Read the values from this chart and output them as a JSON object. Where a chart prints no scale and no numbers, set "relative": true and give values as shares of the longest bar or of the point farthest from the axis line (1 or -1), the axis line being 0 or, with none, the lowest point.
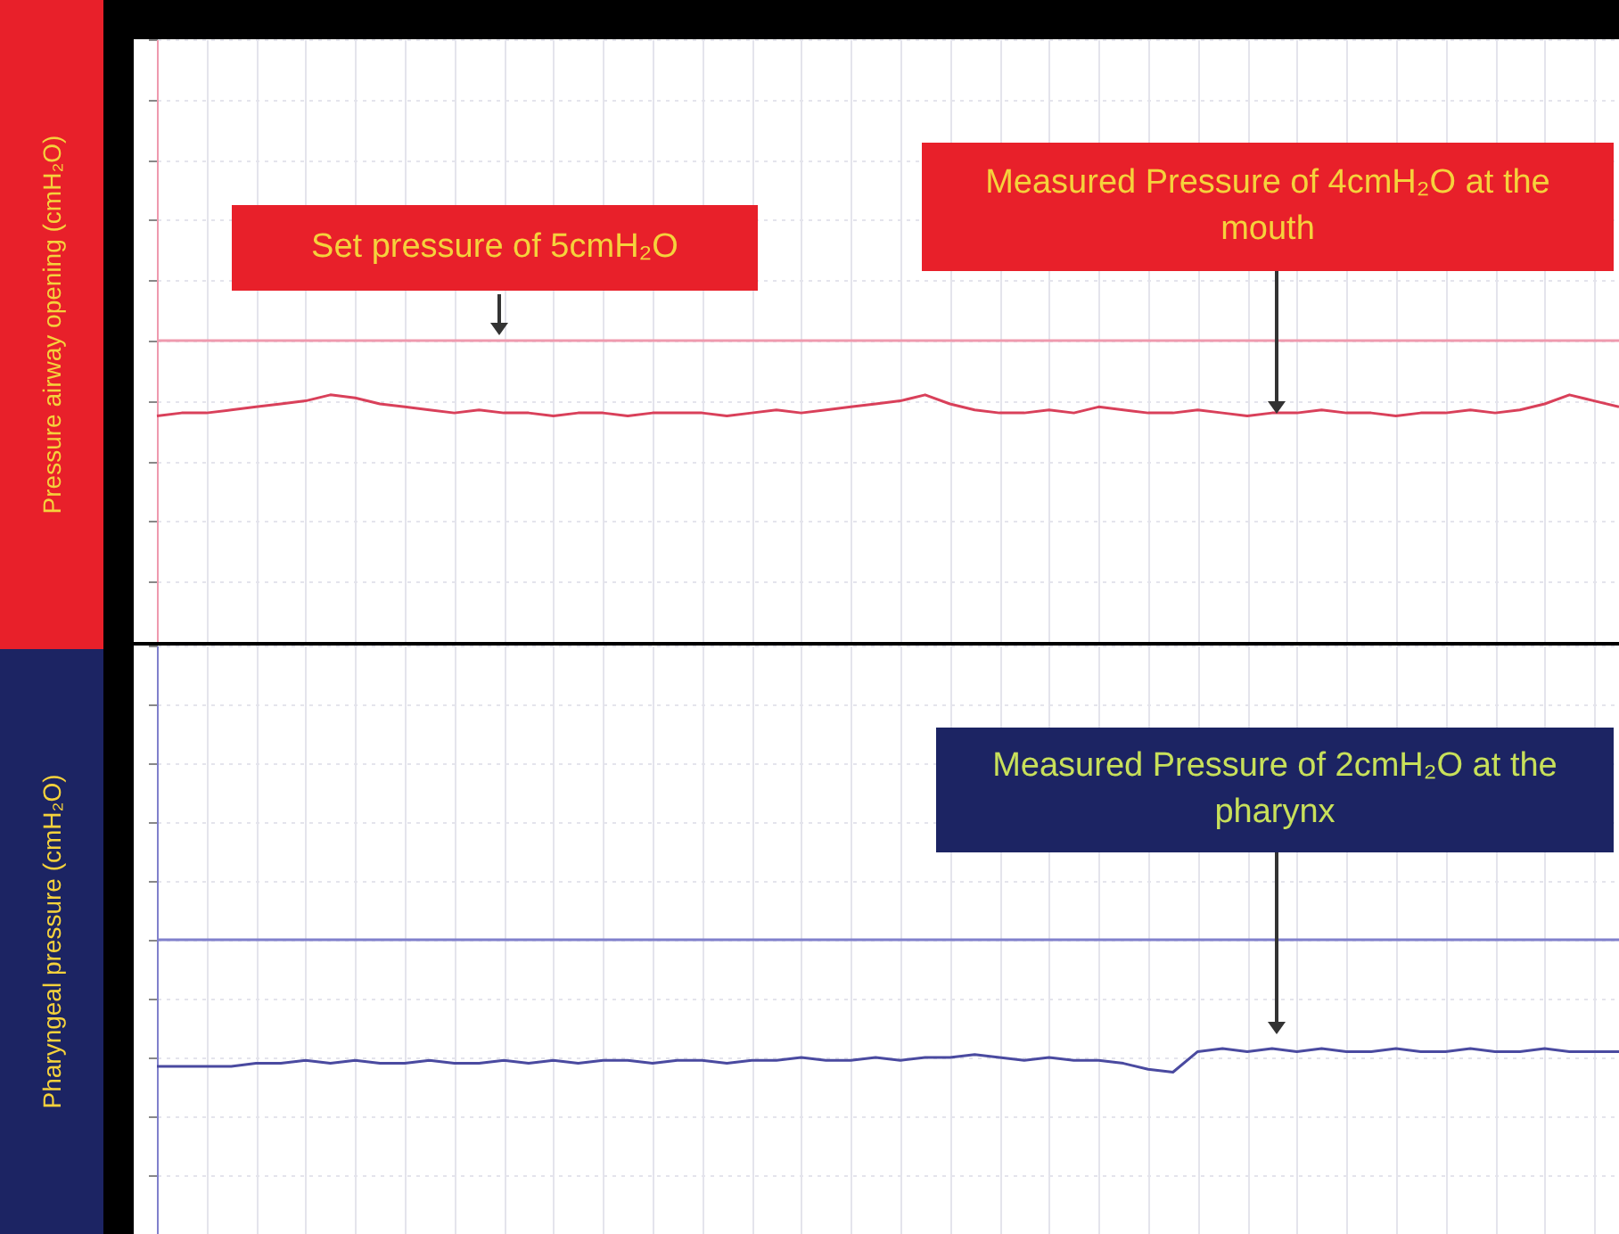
{
  "chart_data": [
    {
      "type": "line",
      "categories": [
        null,
        null,
        null,
        null,
        null,
        null,
        null,
        null,
        null,
        null,
        null,
        null,
        null,
        null,
        null,
        null,
        null,
        null,
        null,
        null,
        null,
        null,
        null,
        null,
        null,
        null,
        null,
        null,
        null,
        null,
        null,
        null,
        null,
        null,
        null,
        null,
        null,
        null,
        null,
        null,
        null,
        null,
        null,
        null,
        null,
        null,
        null,
        null,
        null,
        null,
        null,
        null,
        null,
        null,
        null,
        null,
        null,
        null,
        null,
        null
      ],
      "relative": true,
      "grid": true,
      "ylabel": "Pressure airway opening (cmH₂O)",
      "annotations": [
        "Set pressure of 5cmH₂O",
        "Measured Pressure of 4cmH₂O at the mouth"
      ],
      "series": [
        {
          "color": "#ef9aae",
          "values": [
            1,
            1,
            1,
            1,
            1,
            1,
            1,
            1,
            1,
            1,
            1,
            1,
            1,
            1,
            1,
            1,
            1,
            1,
            1,
            1,
            1,
            1,
            1,
            1,
            1,
            1,
            1,
            1,
            1,
            1,
            1,
            1,
            1,
            1,
            1,
            1,
            1,
            1,
            1,
            1,
            1,
            1,
            1,
            1,
            1,
            1,
            1,
            1,
            1,
            1,
            1,
            1,
            1,
            1,
            1,
            1,
            1,
            1,
            1,
            1
          ]
        },
        {
          "color": "#d9405a",
          "values": [
            0.75,
            0.76,
            0.76,
            0.77,
            0.78,
            0.79,
            0.8,
            0.82,
            0.81,
            0.79,
            0.78,
            0.77,
            0.76,
            0.77,
            0.76,
            0.76,
            0.75,
            0.76,
            0.76,
            0.75,
            0.76,
            0.76,
            0.76,
            0.75,
            0.76,
            0.77,
            0.76,
            0.77,
            0.78,
            0.79,
            0.8,
            0.82,
            0.79,
            0.77,
            0.76,
            0.76,
            0.77,
            0.76,
            0.78,
            0.77,
            0.76,
            0.76,
            0.77,
            0.76,
            0.75,
            0.76,
            0.76,
            0.77,
            0.76,
            0.76,
            0.75,
            0.76,
            0.76,
            0.77,
            0.76,
            0.77,
            0.79,
            0.82,
            0.8,
            0.78
          ]
        }
      ]
    },
    {
      "type": "line",
      "categories": [
        null,
        null,
        null,
        null,
        null,
        null,
        null,
        null,
        null,
        null,
        null,
        null,
        null,
        null,
        null,
        null,
        null,
        null,
        null,
        null,
        null,
        null,
        null,
        null,
        null,
        null,
        null,
        null,
        null,
        null,
        null,
        null,
        null,
        null,
        null,
        null,
        null,
        null,
        null,
        null,
        null,
        null,
        null,
        null,
        null,
        null,
        null,
        null,
        null,
        null,
        null,
        null,
        null,
        null,
        null,
        null,
        null,
        null,
        null,
        null
      ],
      "relative": true,
      "grid": true,
      "ylabel": "Pharyngeal pressure (cmH₂O)",
      "annotations": [
        "Measured Pressure of 2cmH₂O at the pharynx"
      ],
      "series": [
        {
          "color": "#8080cc",
          "values": [
            1,
            1,
            1,
            1,
            1,
            1,
            1,
            1,
            1,
            1,
            1,
            1,
            1,
            1,
            1,
            1,
            1,
            1,
            1,
            1,
            1,
            1,
            1,
            1,
            1,
            1,
            1,
            1,
            1,
            1,
            1,
            1,
            1,
            1,
            1,
            1,
            1,
            1,
            1,
            1,
            1,
            1,
            1,
            1,
            1,
            1,
            1,
            1,
            1,
            1,
            1,
            1,
            1,
            1,
            1,
            1,
            1,
            1,
            1,
            1
          ]
        },
        {
          "color": "#4a4aa0",
          "values": [
            0.57,
            0.57,
            0.57,
            0.57,
            0.58,
            0.58,
            0.59,
            0.58,
            0.59,
            0.58,
            0.58,
            0.59,
            0.58,
            0.58,
            0.59,
            0.58,
            0.59,
            0.58,
            0.59,
            0.59,
            0.58,
            0.59,
            0.59,
            0.58,
            0.59,
            0.59,
            0.6,
            0.59,
            0.59,
            0.6,
            0.59,
            0.6,
            0.6,
            0.61,
            0.6,
            0.59,
            0.6,
            0.59,
            0.59,
            0.58,
            0.56,
            0.55,
            0.62,
            0.63,
            0.62,
            0.63,
            0.62,
            0.63,
            0.62,
            0.62,
            0.63,
            0.62,
            0.62,
            0.63,
            0.62,
            0.62,
            0.63,
            0.62,
            0.62,
            0.62
          ]
        }
      ]
    }
  ]
}
